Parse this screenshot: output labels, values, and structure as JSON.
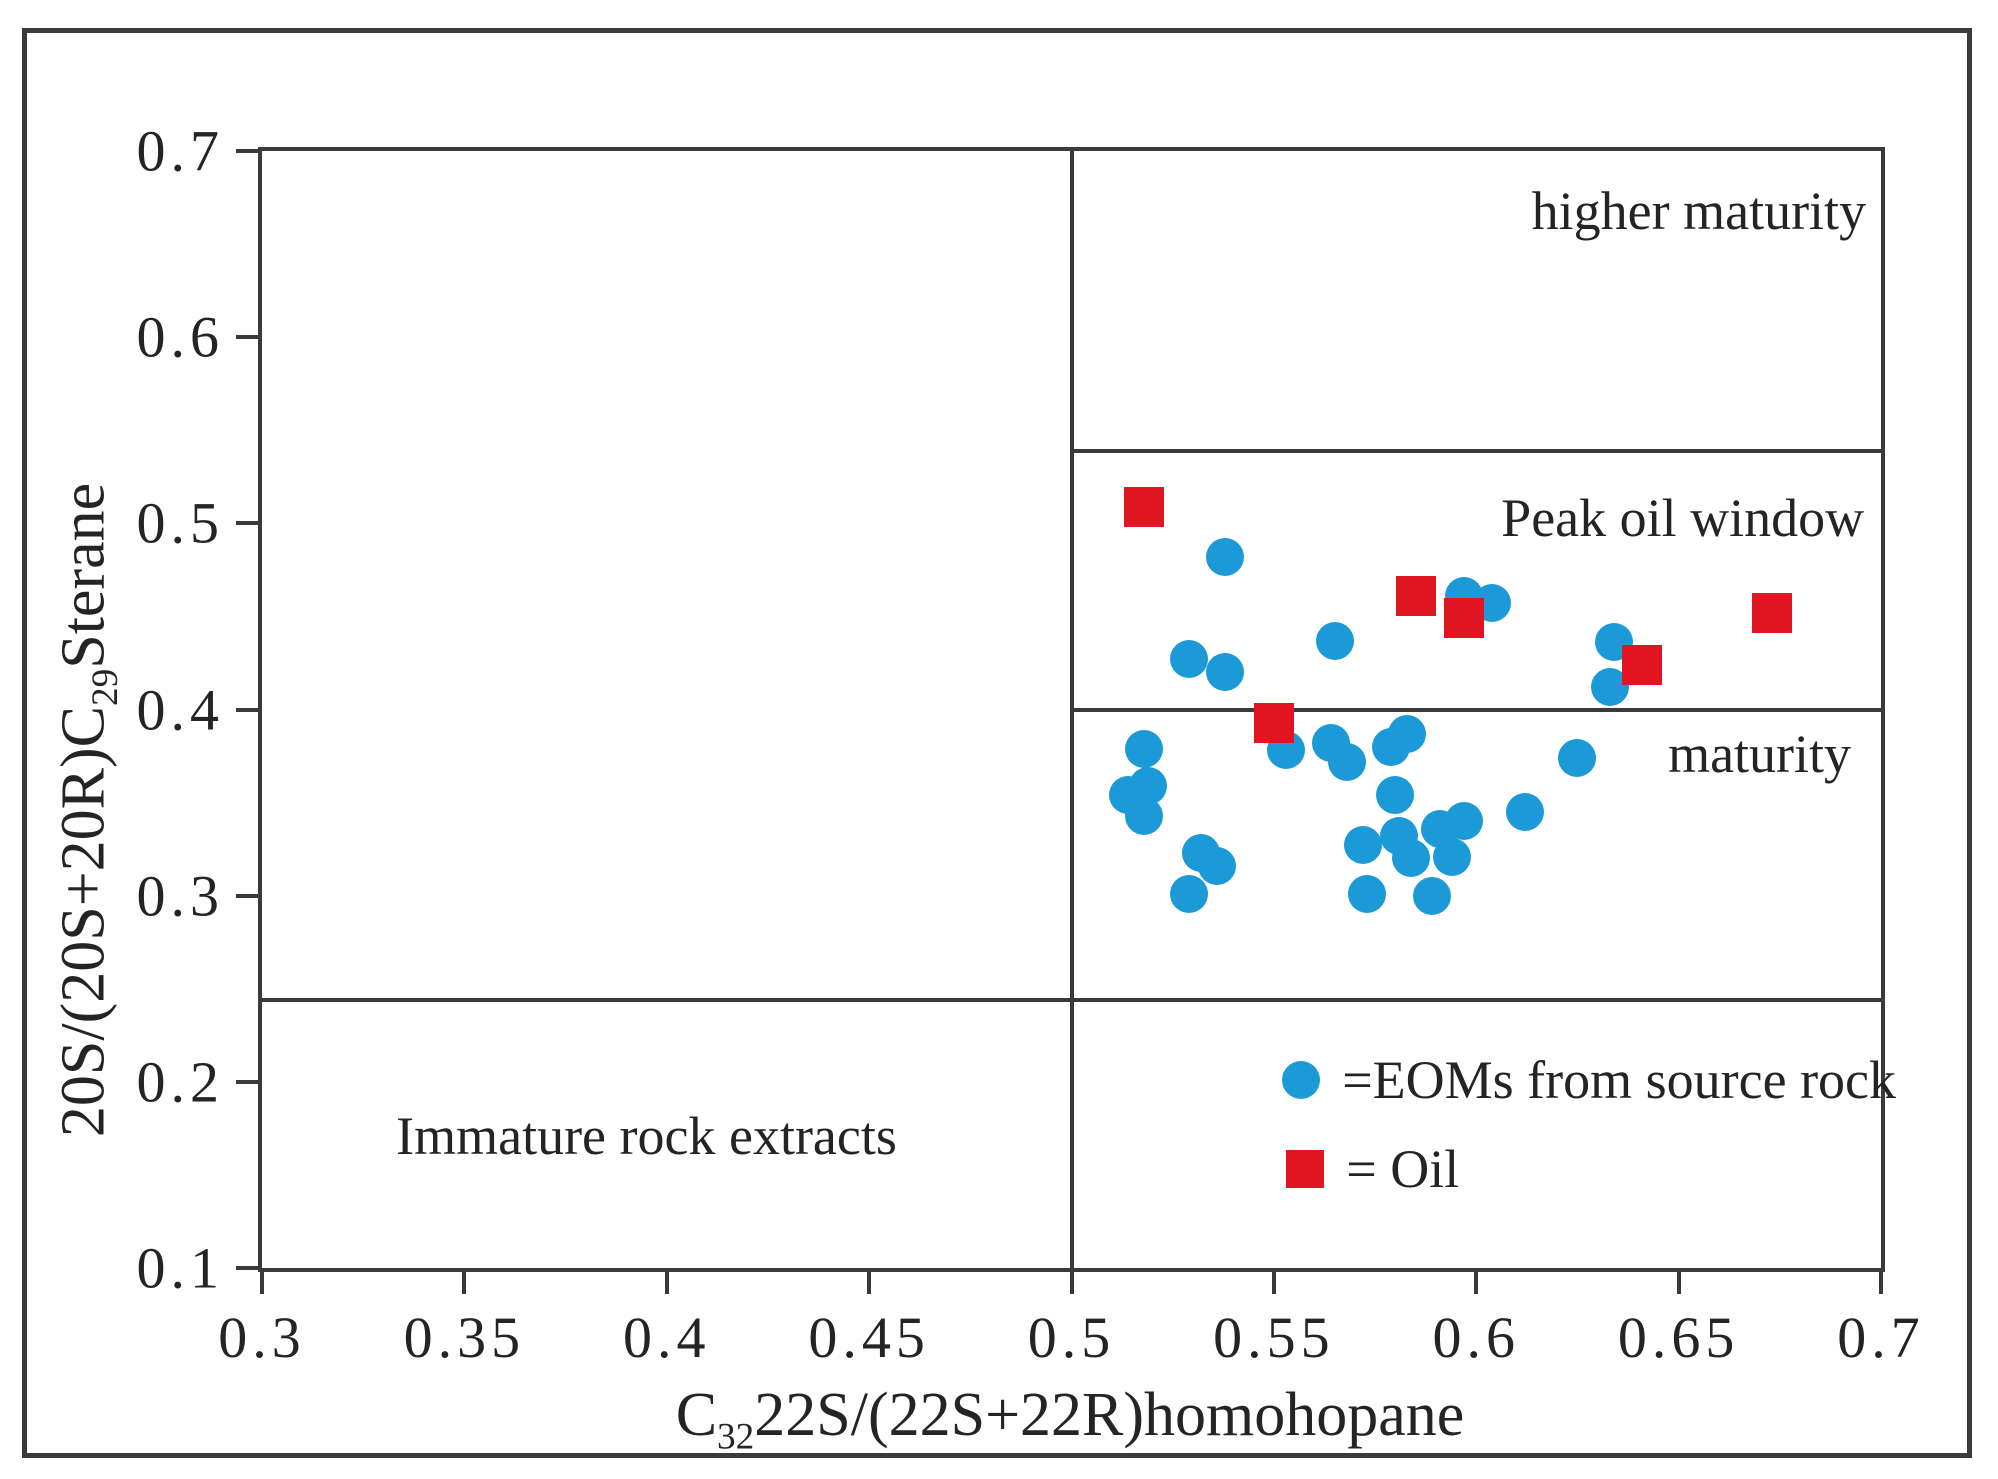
{
  "figure": {
    "background": "#ffffff",
    "border_color": "#3a3a3a",
    "text_color": "#242424"
  },
  "chart_data": {
    "type": "scatter",
    "title": "",
    "xlabel_segments": [
      {
        "text": "C",
        "sub": false
      },
      {
        "text": "32",
        "sub": true
      },
      {
        "text": "22S/(22S+22R)homohopane",
        "sub": false
      }
    ],
    "ylabel_segments": [
      {
        "text": "20S/(20S+20R)C",
        "sub": false
      },
      {
        "text": "29",
        "sub": true
      },
      {
        "text": "Sterane",
        "sub": false
      }
    ],
    "xlim": [
      0.3,
      0.7
    ],
    "ylim": [
      0.1,
      0.7
    ],
    "grid": false,
    "x_ticks": [
      0.3,
      0.35,
      0.4,
      0.45,
      0.5,
      0.55,
      0.6,
      0.65,
      0.7
    ],
    "x_tick_labels": [
      "0.3",
      "0.35",
      "0.4",
      "0.45",
      "0.5",
      "0.55",
      "0.6",
      "0.65",
      "0.7"
    ],
    "y_ticks": [
      0.1,
      0.2,
      0.3,
      0.4,
      0.5,
      0.6,
      0.7
    ],
    "y_tick_labels": [
      "0.1",
      "0.2",
      "0.3",
      "0.4",
      "0.5",
      "0.6",
      "0.7"
    ],
    "region_lines": [
      {
        "name": "maturity-vertical-boundary",
        "orient": "v",
        "x": 0.5,
        "y1": 0.1,
        "y2": 0.7
      },
      {
        "name": "higher-maturity-boundary",
        "orient": "h",
        "y": 0.539,
        "x1": 0.5,
        "x2": 0.7
      },
      {
        "name": "peak-oil-window-boundary",
        "orient": "h",
        "y": 0.4,
        "x1": 0.5,
        "x2": 0.7
      },
      {
        "name": "immature-boundary",
        "orient": "h",
        "y": 0.244,
        "x1": 0.3,
        "x2": 0.7
      }
    ],
    "annotations": [
      {
        "name": "label-higher-maturity",
        "text": "higher maturity",
        "x": 0.655,
        "y": 0.668
      },
      {
        "name": "label-peak-oil-window",
        "text": "Peak oil window",
        "x": 0.651,
        "y": 0.503
      },
      {
        "name": "label-maturity",
        "text": "maturity",
        "x": 0.67,
        "y": 0.376
      },
      {
        "name": "label-immature-rock-extracts",
        "text": "Immature rock extracts",
        "x": 0.395,
        "y": 0.171
      }
    ],
    "series": [
      {
        "name": "EOMs from source rock",
        "marker": "circle",
        "color": "#1b9ad7",
        "points": [
          [
            0.538,
            0.482
          ],
          [
            0.529,
            0.427
          ],
          [
            0.538,
            0.42
          ],
          [
            0.565,
            0.437
          ],
          [
            0.597,
            0.461
          ],
          [
            0.604,
            0.457
          ],
          [
            0.634,
            0.436
          ],
          [
            0.633,
            0.412
          ],
          [
            0.518,
            0.379
          ],
          [
            0.519,
            0.359
          ],
          [
            0.514,
            0.354
          ],
          [
            0.518,
            0.343
          ],
          [
            0.532,
            0.323
          ],
          [
            0.536,
            0.316
          ],
          [
            0.529,
            0.301
          ],
          [
            0.553,
            0.378
          ],
          [
            0.564,
            0.382
          ],
          [
            0.568,
            0.372
          ],
          [
            0.579,
            0.38
          ],
          [
            0.583,
            0.387
          ],
          [
            0.58,
            0.354
          ],
          [
            0.572,
            0.327
          ],
          [
            0.581,
            0.332
          ],
          [
            0.584,
            0.32
          ],
          [
            0.573,
            0.301
          ],
          [
            0.589,
            0.3
          ],
          [
            0.591,
            0.336
          ],
          [
            0.597,
            0.34
          ],
          [
            0.594,
            0.321
          ],
          [
            0.612,
            0.345
          ],
          [
            0.625,
            0.374
          ]
        ]
      },
      {
        "name": "Oil",
        "marker": "square",
        "color": "#e11422",
        "points": [
          [
            0.518,
            0.509
          ],
          [
            0.585,
            0.461
          ],
          [
            0.597,
            0.449
          ],
          [
            0.641,
            0.424
          ],
          [
            0.673,
            0.452
          ],
          [
            0.55,
            0.393
          ]
        ]
      }
    ],
    "legend": {
      "position": "inside-bottom-center-right",
      "items": [
        {
          "name": "legend-eoms",
          "marker": "circle",
          "color": "#1b9ad7",
          "label": "=EOMs from source rock",
          "anchor": [
            0.557,
            0.201
          ]
        },
        {
          "name": "legend-oil",
          "marker": "square",
          "color": "#e11422",
          "label": "= Oil",
          "anchor": [
            0.558,
            0.153
          ]
        }
      ]
    }
  }
}
